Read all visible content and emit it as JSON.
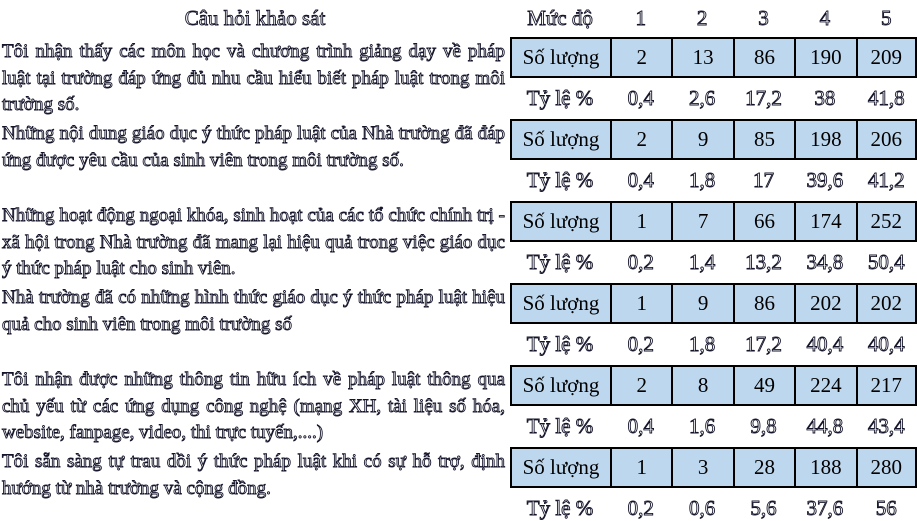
{
  "colors": {
    "count_row_fill": "#bdd7ee",
    "border": "#000000",
    "page_background": "#ffffff"
  },
  "table": {
    "header": {
      "question_col": "Câu hỏi khảo sát",
      "level_col": "Mức độ",
      "levels": [
        "1",
        "2",
        "3",
        "4",
        "5"
      ]
    },
    "row_labels": {
      "count": "Số lượng",
      "percent": "Tỷ lệ %"
    },
    "questions": [
      {
        "text": "Tôi nhận thấy các môn học và chương trình giảng dạy về pháp luật tại trường đáp ứng đủ nhu cầu hiểu biết pháp luật trong môi trường số.",
        "counts": [
          "2",
          "13",
          "86",
          "190",
          "209"
        ],
        "percents": [
          "0,4",
          "2,6",
          "17,2",
          "38",
          "41,8"
        ]
      },
      {
        "text": "Những nội dung giáo dục ý thức pháp luật của Nhà trường đã đáp ứng được yêu cầu của sinh viên trong môi trường số.",
        "counts": [
          "2",
          "9",
          "85",
          "198",
          "206"
        ],
        "percents": [
          "0,4",
          "1,8",
          "17",
          "39,6",
          "41,2"
        ]
      },
      {
        "text": "Những hoạt động ngoại khóa, sinh hoạt của các tổ chức chính trị - xã hội trong Nhà trường đã mang lại hiệu quả trong việc giáo dục ý thức pháp luật cho sinh viên.",
        "counts": [
          "1",
          "7",
          "66",
          "174",
          "252"
        ],
        "percents": [
          "0,2",
          "1,4",
          "13,2",
          "34,8",
          "50,4"
        ]
      },
      {
        "text": "Nhà trường đã có những hình thức giáo dục ý thức pháp luật hiệu quả cho sinh viên trong môi trường số",
        "counts": [
          "1",
          "9",
          "86",
          "202",
          "202"
        ],
        "percents": [
          "0,2",
          "1,8",
          "17,2",
          "40,4",
          "40,4"
        ]
      },
      {
        "text": "Tôi nhận được những thông tin hữu ích về pháp luật thông qua chủ yếu từ các ứng dụng công nghệ (mạng XH, tài liệu số hóa, website, fanpage, video, thi trực tuyến,....)",
        "counts": [
          "2",
          "8",
          "49",
          "224",
          "217"
        ],
        "percents": [
          "0,4",
          "1,6",
          "9,8",
          "44,8",
          "43,4"
        ]
      },
      {
        "text": "Tôi sẵn sàng tự trau dồi ý thức pháp luật khi có sự hỗ trợ, định hướng từ nhà trường và cộng đồng.",
        "counts": [
          "1",
          "3",
          "28",
          "188",
          "280"
        ],
        "percents": [
          "0,2",
          "0,6",
          "5,6",
          "37,6",
          "56"
        ]
      }
    ]
  }
}
